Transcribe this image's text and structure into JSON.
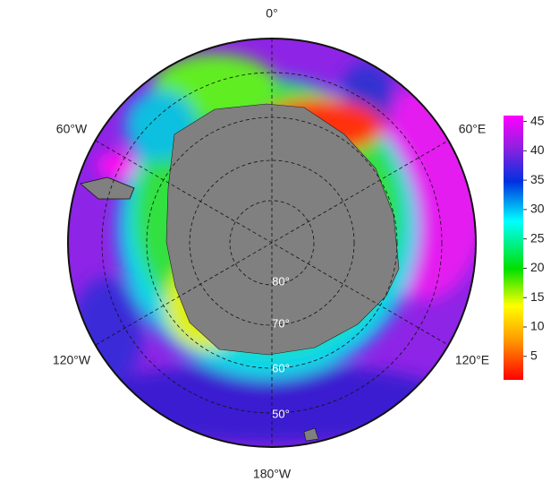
{
  "map": {
    "longitude_labels": [
      "0°",
      "60°E",
      "120°E",
      "180°W",
      "120°W",
      "60°W"
    ],
    "latitude_labels": [
      "80°",
      "70°",
      "60°",
      "50°"
    ]
  },
  "colorbar": {
    "lim": [
      1,
      46
    ],
    "ticks": [
      5,
      10,
      15,
      20,
      25,
      30,
      35,
      40,
      45
    ]
  }
}
